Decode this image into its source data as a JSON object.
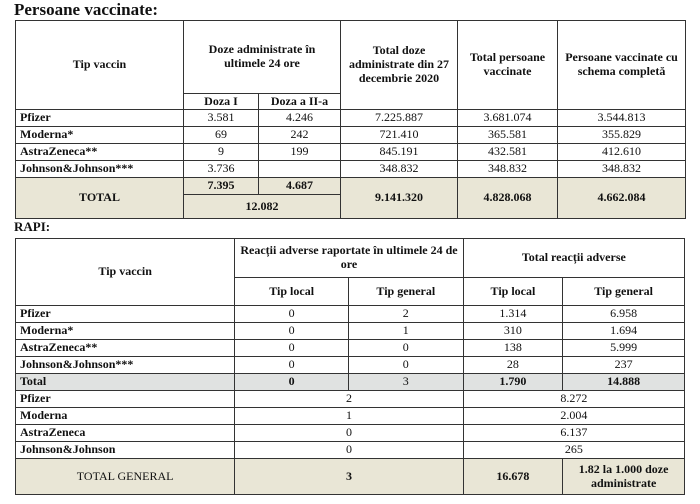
{
  "vaccinated": {
    "title": "Persoane vaccinate:",
    "headers": {
      "type": "Tip vaccin",
      "doses24": "Doze administrate în ultimele 24 ore",
      "dose1": "Doza I",
      "dose2": "Doza a II-a",
      "total_doses": "Total doze administrate din 27 decembrie 2020",
      "total_persons": "Total persoane vaccinate",
      "complete": "Persoane vaccinate cu schema completă"
    },
    "rows": [
      {
        "name": "Pfizer",
        "d1": "3.581",
        "d2": "4.246",
        "total": "7.225.887",
        "persons": "3.681.074",
        "complete": "3.544.813"
      },
      {
        "name": "Moderna*",
        "d1": "69",
        "d2": "242",
        "total": "721.410",
        "persons": "365.581",
        "complete": "355.829"
      },
      {
        "name": "AstraZeneca**",
        "d1": "9",
        "d2": "199",
        "total": "845.191",
        "persons": "432.581",
        "complete": "412.610"
      },
      {
        "name": "Johnson&Johnson***",
        "d1": "3.736",
        "d2": "",
        "total": "348.832",
        "persons": "348.832",
        "complete": "348.832"
      }
    ],
    "total": {
      "label": "TOTAL",
      "d1": "7.395",
      "d2": "4.687",
      "d24": "12.082",
      "total": "9.141.320",
      "persons": "4.828.068",
      "complete": "4.662.084"
    }
  },
  "rapi": {
    "title": "RAPI:",
    "headers": {
      "type": "Tip vaccin",
      "reported24": "Reacții adverse raportate în ultimele 24 de ore",
      "total": "Total reacții adverse",
      "local": "Tip local",
      "general": "Tip general"
    },
    "rows": [
      {
        "name": "Pfizer",
        "l24": "0",
        "g24": "2",
        "lt": "1.314",
        "gt": "6.958"
      },
      {
        "name": "Moderna*",
        "l24": "0",
        "g24": "1",
        "lt": "310",
        "gt": "1.694"
      },
      {
        "name": "AstraZeneca**",
        "l24": "0",
        "g24": "0",
        "lt": "138",
        "gt": "5.999"
      },
      {
        "name": "Johnson&Johnson***",
        "l24": "0",
        "g24": "0",
        "lt": "28",
        "gt": "237"
      }
    ],
    "total": {
      "label": "Total",
      "l24": "0",
      "g24": "3",
      "lt": "1.790",
      "gt": "14.888"
    },
    "summary": [
      {
        "name": "Pfizer",
        "r24": "2",
        "rt": "8.272"
      },
      {
        "name": "Moderna",
        "r24": "1",
        "rt": "2.004"
      },
      {
        "name": "AstraZeneca",
        "r24": "0",
        "rt": "6.137"
      },
      {
        "name": "Johnson&Johnson",
        "r24": "0",
        "rt": "265"
      }
    ],
    "grand": {
      "label": "TOTAL GENERAL",
      "r24": "3",
      "rt": "16.678",
      "rate": "1.82 la 1.000 doze administrate"
    }
  }
}
